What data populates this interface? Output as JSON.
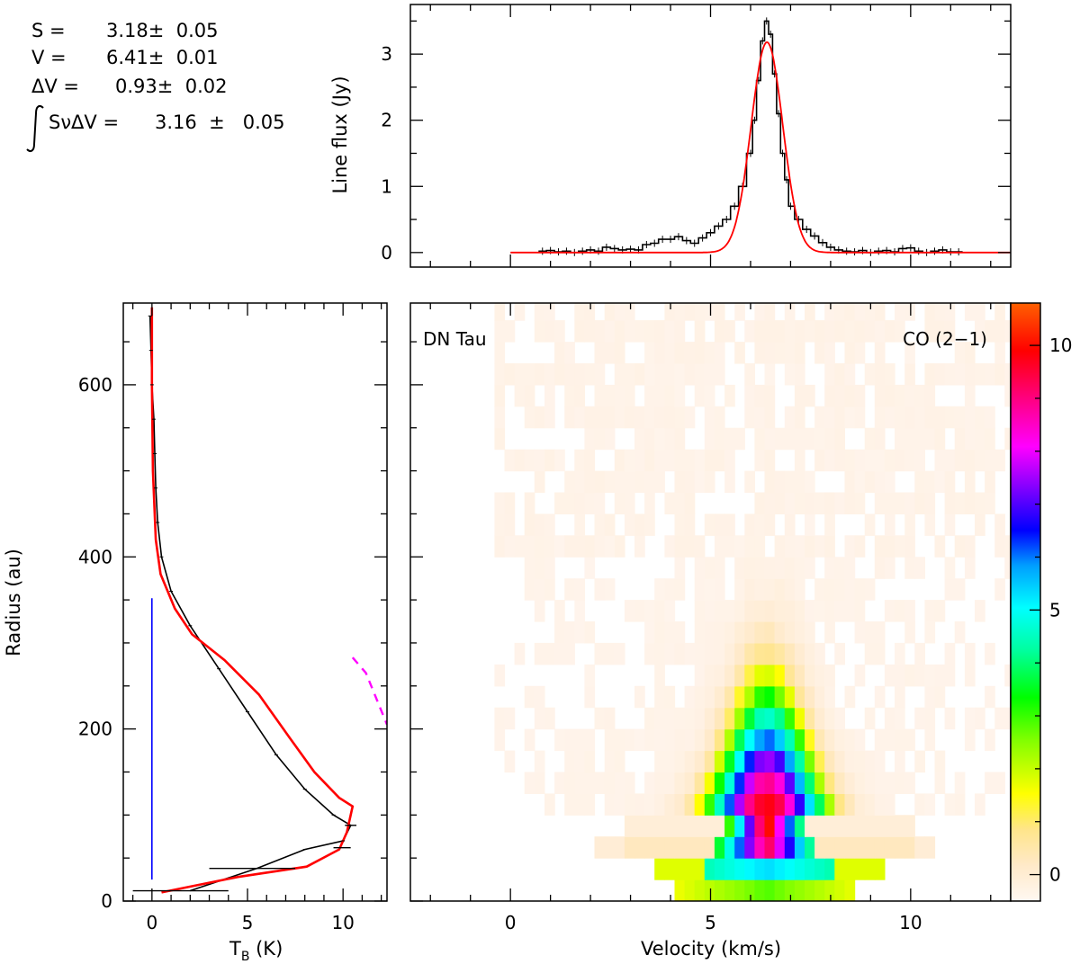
{
  "fit_results": {
    "S_label": "S =",
    "S_value": "3.18±  0.05",
    "V_label": "V =",
    "V_value": "6.41±  0.01",
    "dV_label": "ΔV =",
    "dV_value": "0.93±  0.02",
    "int_label": "SνΔV =",
    "int_value": "3.16  ±   0.05"
  },
  "chart_data": [
    {
      "type": "line",
      "panel": "spectrum",
      "ylabel": "Line flux (Jy)",
      "xlim": [
        -2.5,
        12.5
      ],
      "ylim": [
        -0.22,
        3.75
      ],
      "xticks": [
        0,
        5,
        10
      ],
      "yticks": [
        0,
        1,
        2,
        3
      ],
      "series": [
        {
          "style": "observed",
          "color": "#000000",
          "x": [
            0.8,
            1.0,
            1.2,
            1.4,
            1.6,
            1.8,
            2.0,
            2.2,
            2.4,
            2.6,
            2.8,
            3.0,
            3.2,
            3.4,
            3.6,
            3.8,
            4.0,
            4.2,
            4.4,
            4.6,
            4.8,
            5.0,
            5.2,
            5.4,
            5.6,
            5.8,
            6.0,
            6.1,
            6.2,
            6.3,
            6.4,
            6.5,
            6.6,
            6.7,
            6.8,
            6.9,
            7.0,
            7.2,
            7.4,
            7.6,
            7.8,
            8.0,
            8.2,
            8.4,
            8.6,
            8.8,
            9.0,
            9.2,
            9.4,
            9.6,
            9.8,
            10.0,
            10.2,
            10.4,
            10.6,
            10.8,
            11.0,
            11.2
          ],
          "y": [
            0.02,
            0.03,
            0.01,
            0.02,
            0.0,
            0.02,
            0.04,
            0.02,
            0.08,
            0.06,
            0.04,
            0.05,
            0.04,
            0.12,
            0.14,
            0.2,
            0.2,
            0.24,
            0.18,
            0.14,
            0.22,
            0.3,
            0.4,
            0.5,
            0.7,
            1.0,
            1.5,
            2.0,
            2.6,
            3.2,
            3.5,
            3.3,
            2.7,
            2.1,
            1.5,
            1.1,
            0.7,
            0.5,
            0.35,
            0.25,
            0.15,
            0.08,
            0.04,
            0.02,
            0.01,
            0.03,
            0.0,
            0.02,
            0.03,
            0.01,
            0.06,
            0.07,
            0.02,
            0.0,
            0.02,
            0.04,
            0.01,
            0.01
          ]
        },
        {
          "style": "gaussian fit",
          "color": "#ff0000",
          "amplitude": 3.18,
          "center": 6.41,
          "fwhm": 0.93,
          "x_range": [
            0.0,
            12.5
          ]
        }
      ]
    },
    {
      "type": "line",
      "panel": "radial profile",
      "xlabel": "TB (K)",
      "ylabel": "Radius (au)",
      "xlim": [
        -1.5,
        12.3
      ],
      "ylim": [
        0,
        695
      ],
      "xticks": [
        0,
        5,
        10
      ],
      "yticks": [
        0,
        200,
        400,
        600
      ],
      "series": [
        {
          "style": "observed",
          "color": "#000000",
          "x": [
            -0.1,
            -0.05,
            0.0,
            0.1,
            0.15,
            0.2,
            0.3,
            0.5,
            1.0,
            2.0,
            3.5,
            5.0,
            6.5,
            8.0,
            9.5,
            10.4,
            10.0,
            8.0,
            5.5,
            2.0
          ],
          "y": [
            680,
            640,
            600,
            560,
            520,
            480,
            440,
            400,
            360,
            320,
            270,
            220,
            170,
            130,
            100,
            88,
            70,
            60,
            38,
            12
          ]
        },
        {
          "style": "model",
          "color": "#ff0000",
          "x": [
            0.0,
            0.0,
            0.05,
            0.2,
            0.45,
            1.2,
            2.1,
            3.8,
            5.6,
            7.2,
            8.5,
            9.8,
            10.5,
            10.2,
            9.8,
            8.1,
            4.5,
            0.5
          ],
          "y": [
            690,
            600,
            500,
            420,
            380,
            340,
            310,
            280,
            240,
            190,
            150,
            120,
            110,
            80,
            60,
            40,
            28,
            10
          ]
        },
        {
          "style": "beam",
          "color": "#0000ff",
          "x": [
            0.0,
            0.0
          ],
          "y": [
            25,
            352
          ]
        },
        {
          "style": "dashed",
          "color": "#ff00ff",
          "x": [
            10.5,
            11.2,
            12.3
          ],
          "y": [
            283,
            265,
            205
          ]
        }
      ],
      "error_bars": [
        {
          "y": 12,
          "xmin": -1.0,
          "xmax": 4.0
        },
        {
          "y": 38,
          "xmin": 3.0,
          "xmax": 7.5
        },
        {
          "y": 62,
          "xmin": 9.5,
          "xmax": 10.4
        },
        {
          "y": 88,
          "xmin": 10.1,
          "xmax": 10.7
        }
      ]
    },
    {
      "type": "heatmap",
      "panel": "position-velocity diagram",
      "xlabel": "Velocity (km/s)",
      "label_left": "DN Tau",
      "label_right": "CO (2−1)",
      "xlim": [
        -2.5,
        12.5
      ],
      "ylim": [
        0,
        695
      ],
      "xticks": [
        0,
        5,
        10
      ],
      "colorbar": {
        "range": [
          -0.5,
          10.8
        ],
        "ticks": [
          0,
          5,
          10
        ],
        "colors": [
          "#fff5ee",
          "#ffe8cc",
          "#ffff00",
          "#00ff00",
          "#00ffff",
          "#0000ff",
          "#a000ff",
          "#ff00ff",
          "#ff0060",
          "#ff0000",
          "#ff6000"
        ]
      },
      "center_velocity": 6.41
    }
  ]
}
